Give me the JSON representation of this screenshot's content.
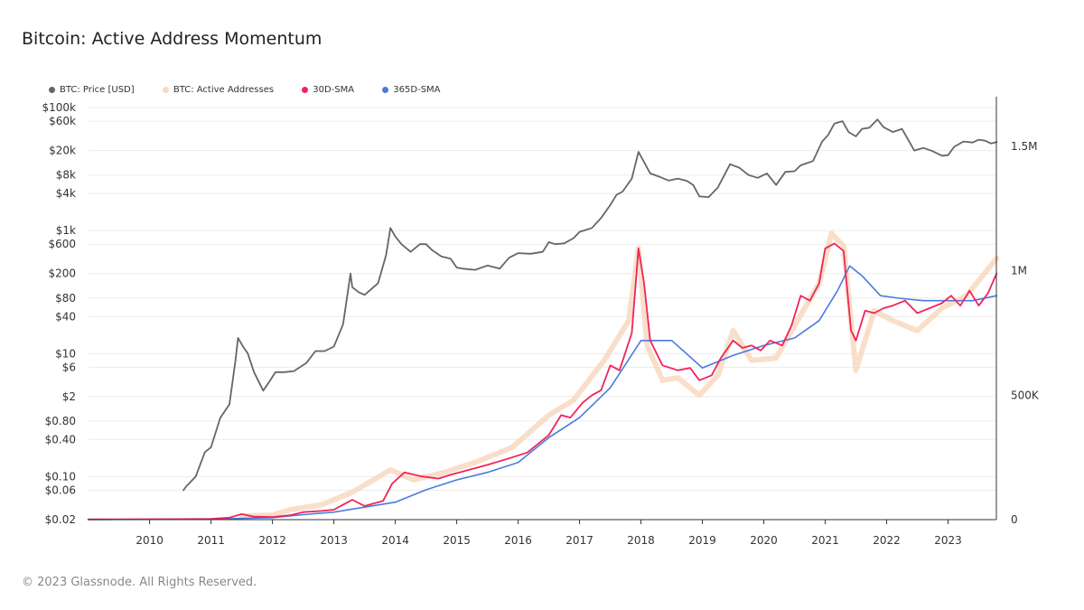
{
  "title": "Bitcoin: Active Address Momentum",
  "footer": "© 2023 Glassnode. All Rights Reserved.",
  "legend": [
    {
      "label": "BTC: Price [USD]",
      "color": "#666666"
    },
    {
      "label": "BTC: Active Addresses",
      "color": "#f8d9c0"
    },
    {
      "label": "30D-SMA",
      "color": "#f0245b"
    },
    {
      "label": "365D-SMA",
      "color": "#4a7be0"
    }
  ],
  "chart_data": {
    "type": "line",
    "title": "Bitcoin: Active Address Momentum",
    "x_range": [
      "2009-01-03",
      "2023-10-15"
    ],
    "x_ticks": [
      "2010",
      "2011",
      "2012",
      "2013",
      "2014",
      "2015",
      "2016",
      "2017",
      "2018",
      "2019",
      "2020",
      "2021",
      "2022",
      "2023"
    ],
    "y_left": {
      "scale": "log",
      "range": [
        0.02,
        150000
      ],
      "tick_values": [
        100000,
        60000,
        20000,
        8000,
        4000,
        1000,
        600,
        200,
        80,
        40,
        10,
        6,
        2,
        0.8,
        0.4,
        0.1,
        0.06,
        0.02
      ],
      "tick_labels": [
        "$100k",
        "$60k",
        "$20k",
        "$8k",
        "$4k",
        "$1k",
        "$600",
        "$200",
        "$80",
        "$40",
        "$10",
        "$6",
        "$2",
        "$0.80",
        "$0.40",
        "$0.10",
        "$0.06",
        "$0.02"
      ]
    },
    "y_right": {
      "scale": "linear",
      "range": [
        0,
        1700000
      ],
      "tick_values": [
        0,
        500000,
        1000000,
        1500000
      ],
      "tick_labels": [
        "0",
        "500K",
        "1M",
        "1.5M"
      ]
    },
    "series": [
      {
        "name": "BTC: Price [USD]",
        "axis": "left",
        "color": "#666666",
        "points": [
          [
            2010.55,
            0.06
          ],
          [
            2010.6,
            0.07
          ],
          [
            2010.75,
            0.1
          ],
          [
            2010.9,
            0.25
          ],
          [
            2011.0,
            0.3
          ],
          [
            2011.15,
            0.9
          ],
          [
            2011.3,
            1.5
          ],
          [
            2011.4,
            8
          ],
          [
            2011.44,
            18
          ],
          [
            2011.52,
            13
          ],
          [
            2011.6,
            10
          ],
          [
            2011.7,
            5
          ],
          [
            2011.85,
            2.5
          ],
          [
            2011.95,
            3.5
          ],
          [
            2012.05,
            5
          ],
          [
            2012.2,
            5
          ],
          [
            2012.35,
            5.2
          ],
          [
            2012.55,
            7
          ],
          [
            2012.7,
            11
          ],
          [
            2012.85,
            11
          ],
          [
            2013.0,
            13
          ],
          [
            2013.15,
            30
          ],
          [
            2013.27,
            200
          ],
          [
            2013.3,
            120
          ],
          [
            2013.4,
            100
          ],
          [
            2013.5,
            90
          ],
          [
            2013.6,
            110
          ],
          [
            2013.72,
            140
          ],
          [
            2013.85,
            400
          ],
          [
            2013.92,
            1100
          ],
          [
            2014.0,
            800
          ],
          [
            2014.1,
            600
          ],
          [
            2014.25,
            450
          ],
          [
            2014.4,
            600
          ],
          [
            2014.5,
            600
          ],
          [
            2014.6,
            480
          ],
          [
            2014.75,
            380
          ],
          [
            2014.9,
            350
          ],
          [
            2015.0,
            250
          ],
          [
            2015.1,
            240
          ],
          [
            2015.3,
            230
          ],
          [
            2015.5,
            270
          ],
          [
            2015.7,
            240
          ],
          [
            2015.85,
            360
          ],
          [
            2016.0,
            430
          ],
          [
            2016.2,
            420
          ],
          [
            2016.4,
            450
          ],
          [
            2016.5,
            650
          ],
          [
            2016.6,
            600
          ],
          [
            2016.75,
            620
          ],
          [
            2016.9,
            750
          ],
          [
            2017.0,
            950
          ],
          [
            2017.2,
            1100
          ],
          [
            2017.35,
            1600
          ],
          [
            2017.5,
            2600
          ],
          [
            2017.6,
            3800
          ],
          [
            2017.7,
            4300
          ],
          [
            2017.85,
            7000
          ],
          [
            2017.96,
            19000
          ],
          [
            2018.05,
            13000
          ],
          [
            2018.15,
            8500
          ],
          [
            2018.3,
            7500
          ],
          [
            2018.45,
            6500
          ],
          [
            2018.6,
            7000
          ],
          [
            2018.75,
            6400
          ],
          [
            2018.85,
            5500
          ],
          [
            2018.95,
            3600
          ],
          [
            2019.1,
            3500
          ],
          [
            2019.25,
            5000
          ],
          [
            2019.45,
            12000
          ],
          [
            2019.6,
            10500
          ],
          [
            2019.75,
            8000
          ],
          [
            2019.9,
            7200
          ],
          [
            2020.05,
            8500
          ],
          [
            2020.2,
            5500
          ],
          [
            2020.35,
            9000
          ],
          [
            2020.5,
            9200
          ],
          [
            2020.6,
            11500
          ],
          [
            2020.8,
            13500
          ],
          [
            2020.95,
            28000
          ],
          [
            2021.05,
            36000
          ],
          [
            2021.15,
            55000
          ],
          [
            2021.28,
            60000
          ],
          [
            2021.38,
            40000
          ],
          [
            2021.5,
            34000
          ],
          [
            2021.6,
            45000
          ],
          [
            2021.72,
            47000
          ],
          [
            2021.85,
            64000
          ],
          [
            2021.95,
            48000
          ],
          [
            2022.1,
            40000
          ],
          [
            2022.25,
            45000
          ],
          [
            2022.35,
            30000
          ],
          [
            2022.45,
            20000
          ],
          [
            2022.6,
            22000
          ],
          [
            2022.75,
            19500
          ],
          [
            2022.9,
            16500
          ],
          [
            2023.0,
            16800
          ],
          [
            2023.1,
            23000
          ],
          [
            2023.25,
            28000
          ],
          [
            2023.4,
            27000
          ],
          [
            2023.5,
            30000
          ],
          [
            2023.6,
            29000
          ],
          [
            2023.7,
            26000
          ],
          [
            2023.79,
            27500
          ]
        ]
      },
      {
        "name": "BTC: Active Addresses",
        "axis": "right",
        "color": "#f8d9c0",
        "points": [
          [
            2011.5,
            15000
          ],
          [
            2012.0,
            18000
          ],
          [
            2012.3,
            40000
          ],
          [
            2012.8,
            60000
          ],
          [
            2013.3,
            110000
          ],
          [
            2013.92,
            200000
          ],
          [
            2014.3,
            160000
          ],
          [
            2014.8,
            190000
          ],
          [
            2015.3,
            230000
          ],
          [
            2015.9,
            290000
          ],
          [
            2016.5,
            420000
          ],
          [
            2016.9,
            480000
          ],
          [
            2017.4,
            640000
          ],
          [
            2017.8,
            800000
          ],
          [
            2017.96,
            1090000
          ],
          [
            2018.1,
            700000
          ],
          [
            2018.35,
            560000
          ],
          [
            2018.6,
            570000
          ],
          [
            2018.95,
            500000
          ],
          [
            2019.25,
            580000
          ],
          [
            2019.5,
            760000
          ],
          [
            2019.8,
            640000
          ],
          [
            2020.2,
            650000
          ],
          [
            2020.5,
            780000
          ],
          [
            2020.9,
            950000
          ],
          [
            2021.1,
            1150000
          ],
          [
            2021.3,
            1100000
          ],
          [
            2021.5,
            600000
          ],
          [
            2021.8,
            840000
          ],
          [
            2022.1,
            800000
          ],
          [
            2022.5,
            760000
          ],
          [
            2022.9,
            850000
          ],
          [
            2023.3,
            900000
          ],
          [
            2023.79,
            1050000
          ]
        ]
      },
      {
        "name": "30D-SMA",
        "axis": "right",
        "color": "#f0245b",
        "points": [
          [
            2009.0,
            1000
          ],
          [
            2010.5,
            2000
          ],
          [
            2011.0,
            3000
          ],
          [
            2011.3,
            8000
          ],
          [
            2011.5,
            22000
          ],
          [
            2011.7,
            12000
          ],
          [
            2012.0,
            10000
          ],
          [
            2012.3,
            18000
          ],
          [
            2012.5,
            30000
          ],
          [
            2012.8,
            35000
          ],
          [
            2013.0,
            40000
          ],
          [
            2013.3,
            80000
          ],
          [
            2013.5,
            55000
          ],
          [
            2013.8,
            75000
          ],
          [
            2013.95,
            145000
          ],
          [
            2014.15,
            190000
          ],
          [
            2014.4,
            175000
          ],
          [
            2014.7,
            165000
          ],
          [
            2014.9,
            180000
          ],
          [
            2015.2,
            200000
          ],
          [
            2015.5,
            220000
          ],
          [
            2015.7,
            235000
          ],
          [
            2015.9,
            250000
          ],
          [
            2016.15,
            270000
          ],
          [
            2016.3,
            300000
          ],
          [
            2016.5,
            340000
          ],
          [
            2016.7,
            420000
          ],
          [
            2016.85,
            410000
          ],
          [
            2017.05,
            470000
          ],
          [
            2017.2,
            500000
          ],
          [
            2017.35,
            520000
          ],
          [
            2017.5,
            620000
          ],
          [
            2017.65,
            600000
          ],
          [
            2017.85,
            750000
          ],
          [
            2017.96,
            1090000
          ],
          [
            2018.05,
            950000
          ],
          [
            2018.15,
            720000
          ],
          [
            2018.35,
            620000
          ],
          [
            2018.6,
            600000
          ],
          [
            2018.8,
            610000
          ],
          [
            2018.95,
            560000
          ],
          [
            2019.15,
            580000
          ],
          [
            2019.3,
            650000
          ],
          [
            2019.5,
            720000
          ],
          [
            2019.65,
            690000
          ],
          [
            2019.8,
            700000
          ],
          [
            2019.95,
            680000
          ],
          [
            2020.1,
            720000
          ],
          [
            2020.3,
            700000
          ],
          [
            2020.45,
            780000
          ],
          [
            2020.6,
            900000
          ],
          [
            2020.75,
            880000
          ],
          [
            2020.9,
            950000
          ],
          [
            2021.0,
            1090000
          ],
          [
            2021.15,
            1110000
          ],
          [
            2021.3,
            1080000
          ],
          [
            2021.42,
            760000
          ],
          [
            2021.5,
            720000
          ],
          [
            2021.65,
            840000
          ],
          [
            2021.8,
            830000
          ],
          [
            2021.95,
            850000
          ],
          [
            2022.1,
            860000
          ],
          [
            2022.3,
            880000
          ],
          [
            2022.5,
            830000
          ],
          [
            2022.7,
            850000
          ],
          [
            2022.9,
            870000
          ],
          [
            2023.05,
            900000
          ],
          [
            2023.2,
            860000
          ],
          [
            2023.35,
            920000
          ],
          [
            2023.5,
            860000
          ],
          [
            2023.65,
            910000
          ],
          [
            2023.79,
            990000
          ]
        ]
      },
      {
        "name": "365D-SMA",
        "axis": "right",
        "color": "#4a7be0",
        "points": [
          [
            2009.0,
            0
          ],
          [
            2011.0,
            2000
          ],
          [
            2012.0,
            8000
          ],
          [
            2012.5,
            20000
          ],
          [
            2013.0,
            30000
          ],
          [
            2013.5,
            50000
          ],
          [
            2014.0,
            70000
          ],
          [
            2014.5,
            120000
          ],
          [
            2015.0,
            160000
          ],
          [
            2015.5,
            190000
          ],
          [
            2016.0,
            230000
          ],
          [
            2016.5,
            330000
          ],
          [
            2017.0,
            410000
          ],
          [
            2017.5,
            530000
          ],
          [
            2018.0,
            720000
          ],
          [
            2018.5,
            720000
          ],
          [
            2019.0,
            610000
          ],
          [
            2019.5,
            660000
          ],
          [
            2020.0,
            700000
          ],
          [
            2020.5,
            730000
          ],
          [
            2020.9,
            800000
          ],
          [
            2021.2,
            920000
          ],
          [
            2021.4,
            1020000
          ],
          [
            2021.6,
            980000
          ],
          [
            2021.9,
            900000
          ],
          [
            2022.2,
            890000
          ],
          [
            2022.6,
            880000
          ],
          [
            2023.0,
            880000
          ],
          [
            2023.4,
            880000
          ],
          [
            2023.79,
            900000
          ]
        ]
      }
    ]
  }
}
